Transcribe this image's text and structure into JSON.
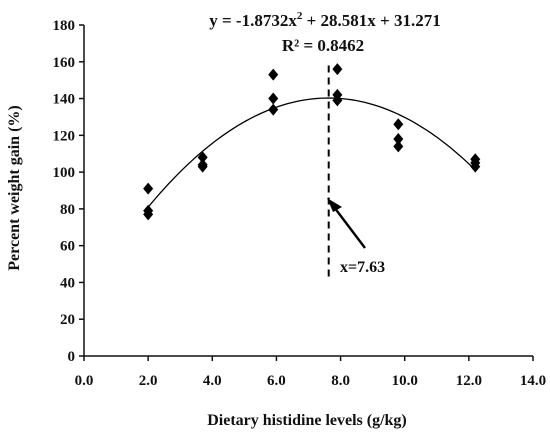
{
  "chart_data": {
    "type": "scatter",
    "xlabel": "Dietary histidine levels (g/kg)",
    "ylabel": "Percent weight gain (%)",
    "xlim": [
      0,
      14
    ],
    "ylim": [
      0,
      180
    ],
    "x_ticks": [
      "0.0",
      "2.0",
      "4.0",
      "6.0",
      "8.0",
      "10.0",
      "12.0",
      "14.0"
    ],
    "y_ticks": [
      "0",
      "20",
      "40",
      "60",
      "80",
      "100",
      "120",
      "140",
      "160",
      "180"
    ],
    "grid": false,
    "legend": "none",
    "points": [
      {
        "x": 2.0,
        "y": 91
      },
      {
        "x": 2.0,
        "y": 79
      },
      {
        "x": 2.0,
        "y": 77
      },
      {
        "x": 3.7,
        "y": 108
      },
      {
        "x": 3.7,
        "y": 104
      },
      {
        "x": 3.7,
        "y": 103
      },
      {
        "x": 5.9,
        "y": 153
      },
      {
        "x": 5.9,
        "y": 140
      },
      {
        "x": 5.9,
        "y": 134
      },
      {
        "x": 7.9,
        "y": 156
      },
      {
        "x": 7.9,
        "y": 142
      },
      {
        "x": 7.9,
        "y": 139
      },
      {
        "x": 9.8,
        "y": 126
      },
      {
        "x": 9.8,
        "y": 118
      },
      {
        "x": 9.8,
        "y": 114
      },
      {
        "x": 12.2,
        "y": 107
      },
      {
        "x": 12.2,
        "y": 105
      },
      {
        "x": 12.2,
        "y": 103
      }
    ],
    "fit": {
      "type": "quadratic",
      "a": -1.8732,
      "b": 28.581,
      "c": 31.271,
      "x_range": [
        2.0,
        12.2
      ],
      "equation_main": "y = -1.8732x",
      "equation_sup": "2",
      "equation_rest": " + 28.581x + 31.271",
      "r2_label": "R² = 0.8462"
    },
    "optimum": {
      "x": 7.63,
      "label": "x=7.63",
      "line_y_range": [
        42,
        158
      ]
    },
    "marker": "diamond",
    "marker_color": "#000000",
    "line_color": "#000000"
  }
}
